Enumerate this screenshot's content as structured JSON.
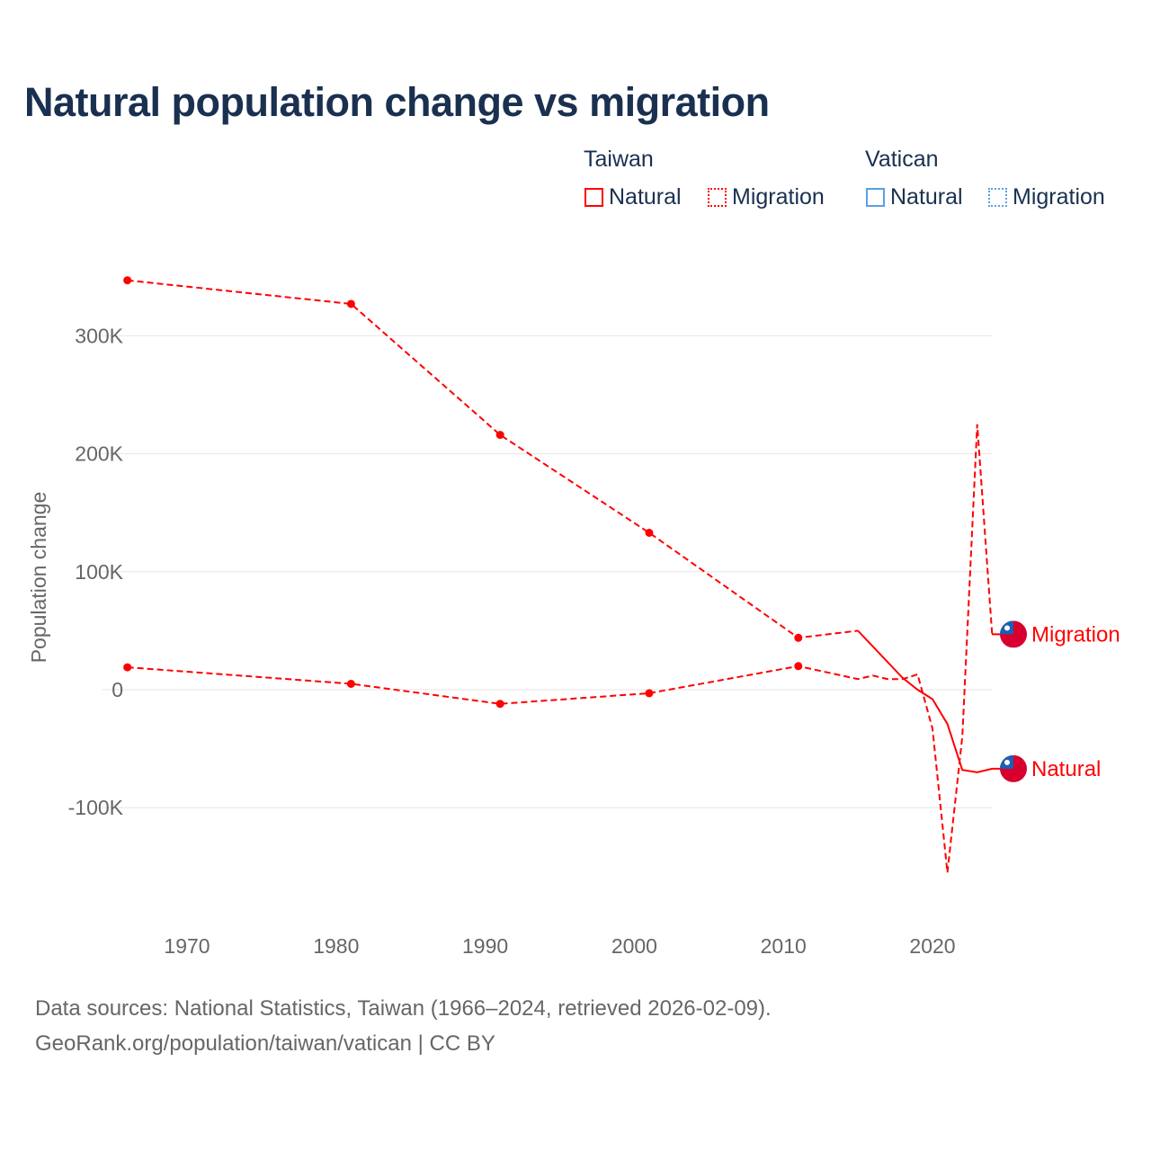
{
  "title": "Natural population change vs migration",
  "legend": {
    "groups": [
      {
        "name": "Taiwan",
        "color": "#ff0000",
        "items": [
          "Natural",
          "Migration"
        ]
      },
      {
        "name": "Vatican",
        "color": "#5aa0e6",
        "items": [
          "Natural",
          "Migration"
        ]
      }
    ]
  },
  "footer": {
    "line1": "Data sources: National Statistics, Taiwan (1966–2024, retrieved 2026-02-09).",
    "line2": "GeoRank.org/population/taiwan/vatican | CC BY"
  },
  "chart_data": {
    "type": "line",
    "title": "Natural population change vs migration",
    "xlabel": "",
    "ylabel": "Population change",
    "xlim": [
      1962,
      2024
    ],
    "ylim": [
      -180000,
      370000
    ],
    "xticks": [
      1970,
      1980,
      1990,
      2000,
      2010,
      2020
    ],
    "yticks": [
      {
        "v": -100000,
        "l": "-100K"
      },
      {
        "v": 0,
        "l": "0"
      },
      {
        "v": 100000,
        "l": "100K"
      },
      {
        "v": 200000,
        "l": "200K"
      },
      {
        "v": 300000,
        "l": "300K"
      }
    ],
    "series": [
      {
        "name": "Natural",
        "country": "Taiwan",
        "color": "#ff0000",
        "label": "Natural",
        "x": [
          1966,
          1981,
          1991,
          2001,
          2011,
          2015,
          2018,
          2019,
          2020,
          2021,
          2022,
          2023,
          2024
        ],
        "y": [
          347000,
          327000,
          216000,
          133000,
          44000,
          50000,
          10000,
          0,
          -8000,
          -29000,
          -68000,
          -70000,
          -67000
        ],
        "markers": [
          1966,
          1981,
          1991,
          2001,
          2011
        ]
      },
      {
        "name": "Migration",
        "country": "Taiwan",
        "color": "#ff0000",
        "label": "Migration",
        "x": [
          1966,
          1981,
          1991,
          2001,
          2011,
          2015,
          2016,
          2017,
          2018,
          2019,
          2020,
          2021,
          2022,
          2023,
          2024
        ],
        "y": [
          19000,
          5000,
          -12000,
          -3000,
          20000,
          9000,
          12000,
          9000,
          9000,
          13000,
          -33000,
          -155000,
          -40000,
          225000,
          47000
        ],
        "markers": [
          1966,
          1981,
          1991,
          2001,
          2011
        ]
      }
    ]
  }
}
